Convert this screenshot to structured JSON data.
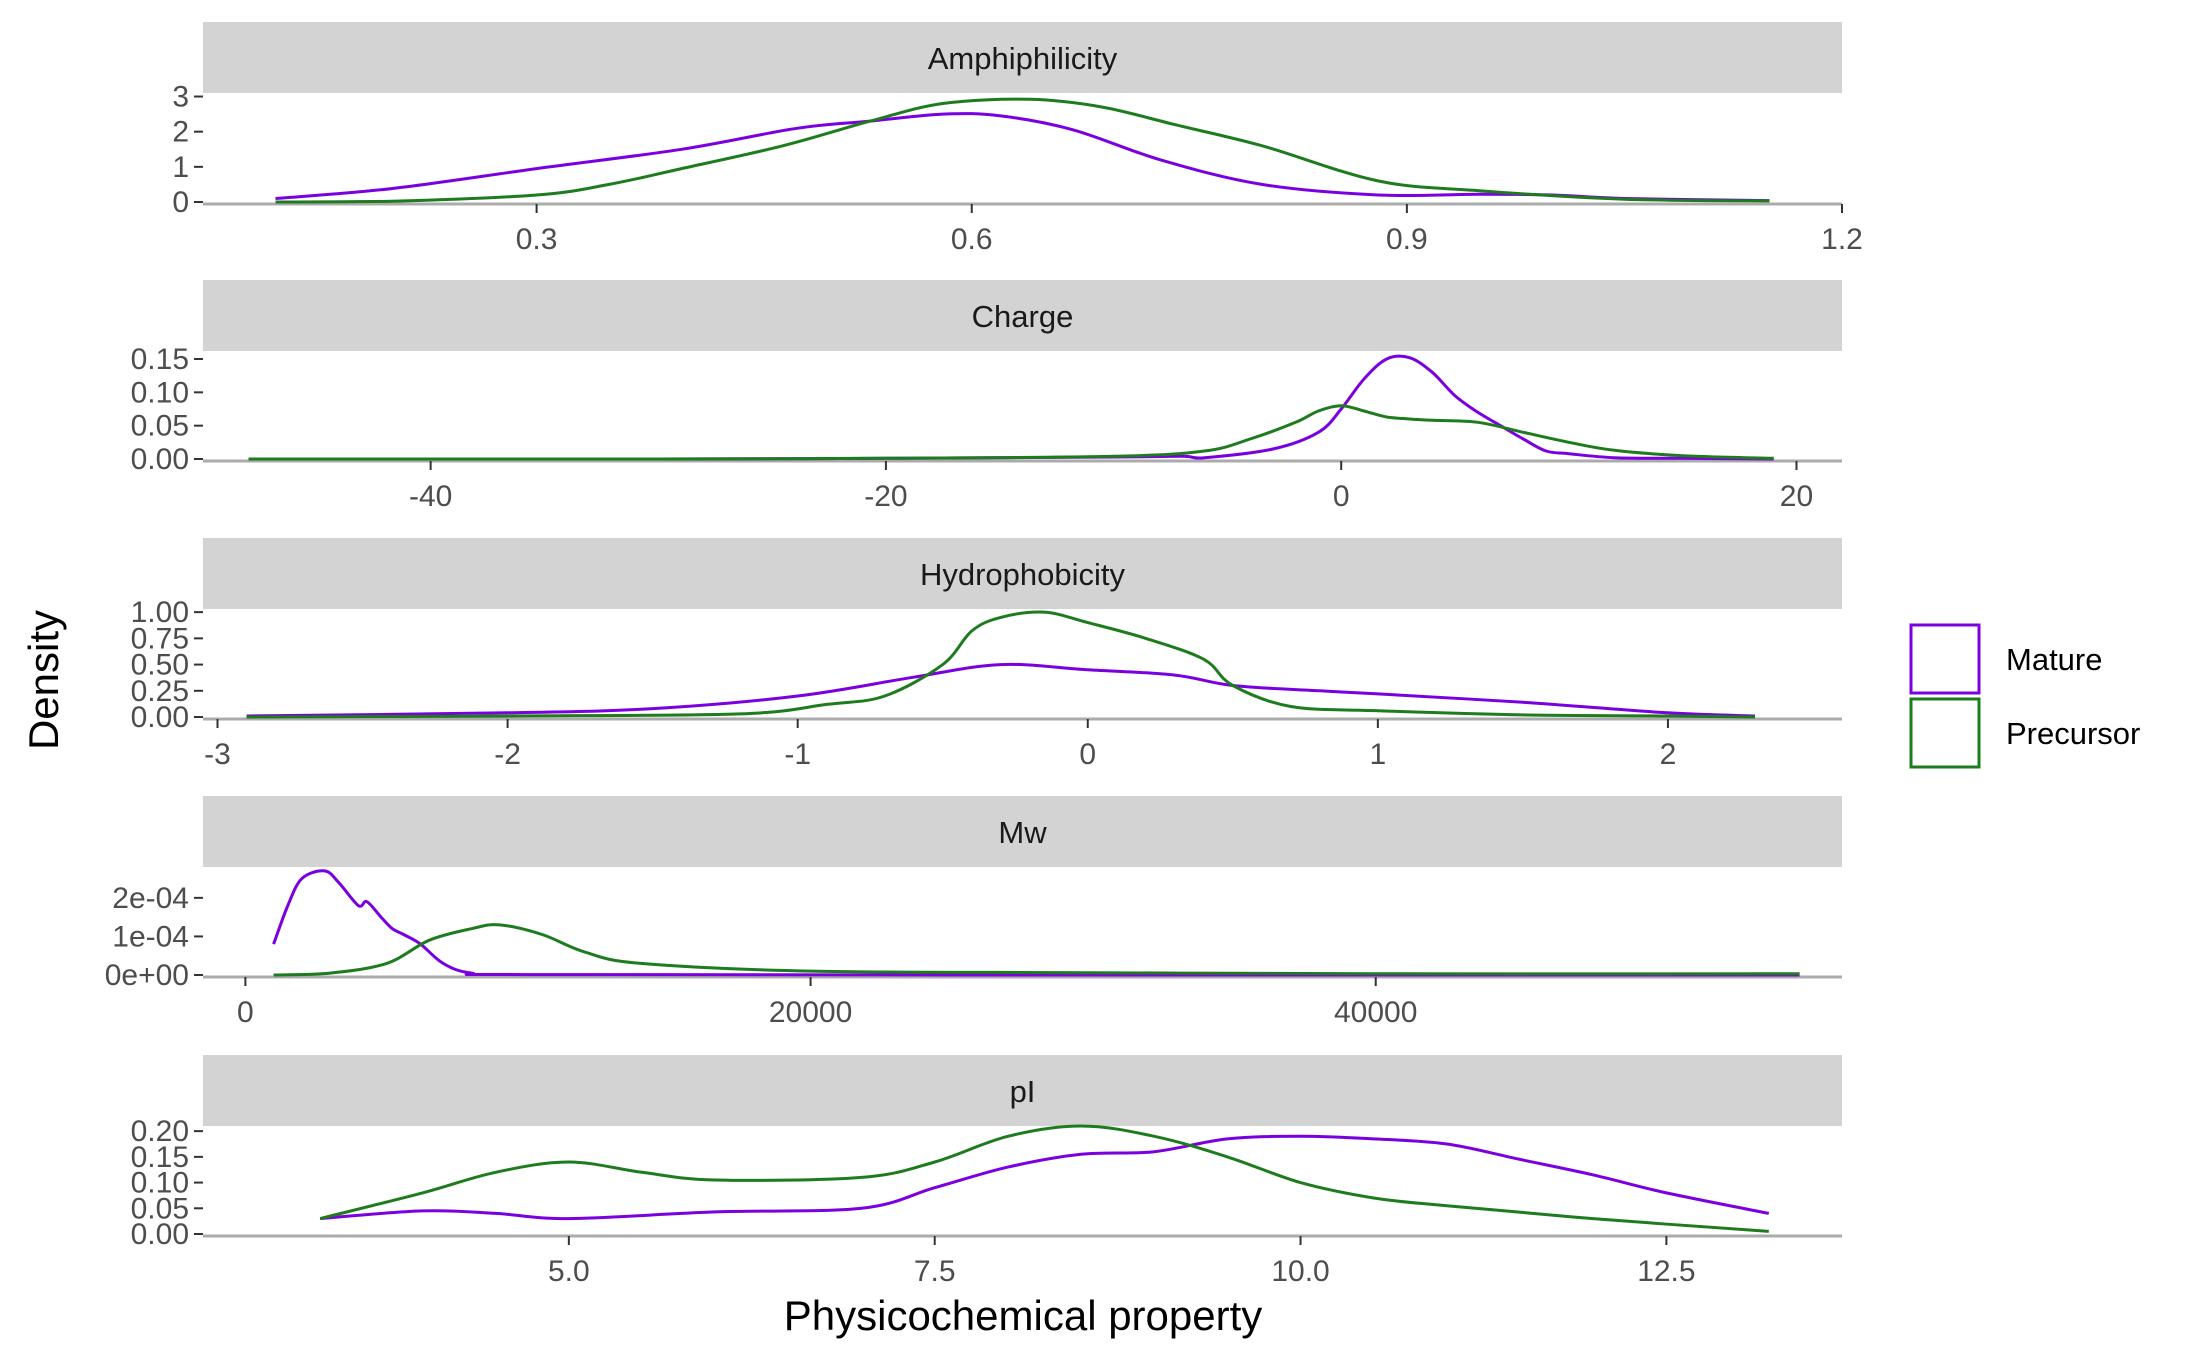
{
  "chart_data": {
    "type": "line",
    "subtype": "density-facets",
    "xlabel": "Physicochemical property",
    "ylabel": "Density",
    "legend": {
      "placement": "right",
      "entries": [
        {
          "name": "Mature",
          "color": "#7B00E0"
        },
        {
          "name": "Precursor",
          "color": "#1E7B1E"
        }
      ]
    },
    "panels": [
      {
        "title": "Amphiphilicity",
        "xlim": [
          0.07,
          1.2
        ],
        "ylim": [
          0,
          3.1
        ],
        "xticks": [
          {
            "v": 0.3,
            "label": "0.3"
          },
          {
            "v": 0.6,
            "label": "0.6"
          },
          {
            "v": 0.9,
            "label": "0.9"
          },
          {
            "v": 1.2,
            "label": "1.2"
          }
        ],
        "yticks": [
          {
            "v": 0,
            "label": "0"
          },
          {
            "v": 1,
            "label": "1"
          },
          {
            "v": 2,
            "label": "2"
          },
          {
            "v": 3,
            "label": "3"
          }
        ],
        "series": [
          {
            "name": "Mature",
            "x": [
              0.12,
              0.2,
              0.3,
              0.4,
              0.48,
              0.53,
              0.58,
              0.62,
              0.67,
              0.73,
              0.8,
              0.88,
              0.95,
              1.0,
              1.05,
              1.15
            ],
            "y": [
              0.1,
              0.38,
              0.95,
              1.5,
              2.1,
              2.3,
              2.5,
              2.45,
              2.05,
              1.2,
              0.5,
              0.2,
              0.22,
              0.2,
              0.1,
              0.04
            ]
          },
          {
            "name": "Precursor",
            "x": [
              0.12,
              0.2,
              0.3,
              0.35,
              0.4,
              0.47,
              0.53,
              0.58,
              0.64,
              0.69,
              0.74,
              0.8,
              0.88,
              0.95,
              1.05,
              1.15
            ],
            "y": [
              0.0,
              0.02,
              0.2,
              0.5,
              0.95,
              1.6,
              2.3,
              2.8,
              2.92,
              2.7,
              2.2,
              1.6,
              0.6,
              0.32,
              0.08,
              0.03
            ]
          }
        ]
      },
      {
        "title": "Charge",
        "xlim": [
          -50,
          22
        ],
        "ylim": [
          0,
          0.162
        ],
        "xticks": [
          {
            "v": -40,
            "label": "-40"
          },
          {
            "v": -20,
            "label": "-20"
          },
          {
            "v": 0,
            "label": "0"
          },
          {
            "v": 20,
            "label": "20"
          }
        ],
        "yticks": [
          {
            "v": 0,
            "label": "0.00"
          },
          {
            "v": 0.05,
            "label": "0.05"
          },
          {
            "v": 0.1,
            "label": "0.10"
          },
          {
            "v": 0.15,
            "label": "0.15"
          }
        ],
        "series": [
          {
            "name": "Mature",
            "x": [
              -48,
              -30,
              -20,
              -10,
              -7,
              -6,
              -3,
              -1,
              0,
              1,
              2,
              3,
              4,
              5,
              6,
              7,
              8,
              9,
              10,
              12,
              15,
              19
            ],
            "y": [
              0.0,
              0.0,
              0.001,
              0.003,
              0.004,
              0.002,
              0.015,
              0.04,
              0.075,
              0.12,
              0.15,
              0.152,
              0.13,
              0.095,
              0.07,
              0.05,
              0.03,
              0.012,
              0.008,
              0.002,
              0.001,
              0.0
            ]
          },
          {
            "name": "Precursor",
            "x": [
              -48,
              -30,
              -20,
              -10,
              -6,
              -4,
              -2,
              -1,
              0,
              1,
              2,
              3,
              4,
              6,
              8,
              10,
              12,
              15,
              19
            ],
            "y": [
              0.0,
              0.0,
              0.001,
              0.004,
              0.012,
              0.03,
              0.055,
              0.072,
              0.08,
              0.072,
              0.063,
              0.06,
              0.058,
              0.055,
              0.04,
              0.025,
              0.013,
              0.005,
              0.001
            ]
          }
        ]
      },
      {
        "title": "Hydrophobicity",
        "xlim": [
          -3.05,
          2.6
        ],
        "ylim": [
          0,
          1.03
        ],
        "xticks": [
          {
            "v": -3,
            "label": "-3"
          },
          {
            "v": -2,
            "label": "-2"
          },
          {
            "v": -1,
            "label": "-1"
          },
          {
            "v": 0,
            "label": "0"
          },
          {
            "v": 1,
            "label": "1"
          },
          {
            "v": 2,
            "label": "2"
          }
        ],
        "yticks": [
          {
            "v": 0,
            "label": "0.00"
          },
          {
            "v": 0.25,
            "label": "0.25"
          },
          {
            "v": 0.5,
            "label": "0.50"
          },
          {
            "v": 0.75,
            "label": "0.75"
          },
          {
            "v": 1,
            "label": "1.00"
          }
        ],
        "series": [
          {
            "name": "Mature",
            "x": [
              -2.9,
              -2.0,
              -1.5,
              -1.0,
              -0.6,
              -0.3,
              0.0,
              0.3,
              0.5,
              0.8,
              1.0,
              1.5,
              2.0,
              2.3
            ],
            "y": [
              0.01,
              0.04,
              0.08,
              0.2,
              0.38,
              0.5,
              0.45,
              0.4,
              0.3,
              0.25,
              0.22,
              0.14,
              0.04,
              0.01
            ]
          },
          {
            "name": "Precursor",
            "x": [
              -2.9,
              -2.0,
              -1.2,
              -0.9,
              -0.7,
              -0.5,
              -0.4,
              -0.3,
              -0.15,
              0.0,
              0.2,
              0.4,
              0.5,
              0.7,
              1.0,
              1.5,
              2.0,
              2.3
            ],
            "y": [
              0.0,
              0.01,
              0.03,
              0.12,
              0.2,
              0.5,
              0.82,
              0.95,
              1.0,
              0.9,
              0.75,
              0.55,
              0.3,
              0.1,
              0.06,
              0.02,
              0.01,
              0.0
            ]
          }
        ]
      },
      {
        "title": "Mw",
        "xlim": [
          -1500,
          56500
        ],
        "ylim": [
          0,
          0.00028
        ],
        "xticks": [
          {
            "v": 0,
            "label": "0"
          },
          {
            "v": 20000,
            "label": "20000"
          },
          {
            "v": 40000,
            "label": "40000"
          }
        ],
        "yticks": [
          {
            "v": 0,
            "label": "0e+00"
          },
          {
            "v": 0.0001,
            "label": "1e-04"
          },
          {
            "v": 0.0002,
            "label": "2e-04"
          }
        ],
        "series": [
          {
            "name": "Mature",
            "x": [
              1000,
              1500,
              2000,
              2800,
              3300,
              4000,
              4300,
              4800,
              5200,
              5600,
              6200,
              7000,
              8000,
              10000,
              30000,
              55000
            ],
            "y": [
              8e-05,
              0.00018,
              0.00025,
              0.00027,
              0.00024,
              0.00018,
              0.00019,
              0.00015,
              0.00012,
              0.000105,
              8e-05,
              3e-05,
              5e-06,
              1e-06,
              0.0,
              0.0
            ]
          },
          {
            "name": "Precursor",
            "x": [
              1000,
              3000,
              5000,
              6500,
              8000,
              9000,
              10500,
              12000,
              14000,
              20000,
              30000,
              40000,
              55000
            ],
            "y": [
              0.0,
              5e-06,
              3e-05,
              9e-05,
              0.00012,
              0.00013,
              0.000105,
              6e-05,
              3e-05,
              1e-05,
              6e-06,
              3e-06,
              3e-06
            ]
          }
        ]
      },
      {
        "title": "pI",
        "xlim": [
          2.5,
          13.7
        ],
        "ylim": [
          0,
          0.21
        ],
        "xticks": [
          {
            "v": 5,
            "label": "5.0"
          },
          {
            "v": 7.5,
            "label": "7.5"
          },
          {
            "v": 10,
            "label": "10.0"
          },
          {
            "v": 12.5,
            "label": "12.5"
          }
        ],
        "yticks": [
          {
            "v": 0,
            "label": "0.00"
          },
          {
            "v": 0.05,
            "label": "0.05"
          },
          {
            "v": 0.1,
            "label": "0.10"
          },
          {
            "v": 0.15,
            "label": "0.15"
          },
          {
            "v": 0.2,
            "label": "0.20"
          }
        ],
        "series": [
          {
            "name": "Mature",
            "x": [
              3.3,
              4.0,
              4.5,
              5.0,
              6.0,
              7.0,
              7.5,
              8.0,
              8.5,
              9.0,
              9.5,
              10.0,
              10.5,
              11.0,
              11.5,
              12.0,
              12.5,
              13.2
            ],
            "y": [
              0.03,
              0.045,
              0.04,
              0.03,
              0.043,
              0.05,
              0.09,
              0.13,
              0.155,
              0.16,
              0.185,
              0.19,
              0.185,
              0.175,
              0.145,
              0.115,
              0.08,
              0.04
            ]
          },
          {
            "name": "Precursor",
            "x": [
              3.3,
              4.0,
              4.5,
              5.0,
              5.5,
              6.0,
              7.0,
              7.5,
              8.0,
              8.5,
              9.0,
              9.5,
              10.0,
              10.5,
              11.0,
              12.0,
              13.2
            ],
            "y": [
              0.03,
              0.08,
              0.12,
              0.14,
              0.12,
              0.105,
              0.11,
              0.14,
              0.19,
              0.21,
              0.19,
              0.15,
              0.1,
              0.07,
              0.055,
              0.03,
              0.005
            ]
          }
        ]
      }
    ]
  }
}
